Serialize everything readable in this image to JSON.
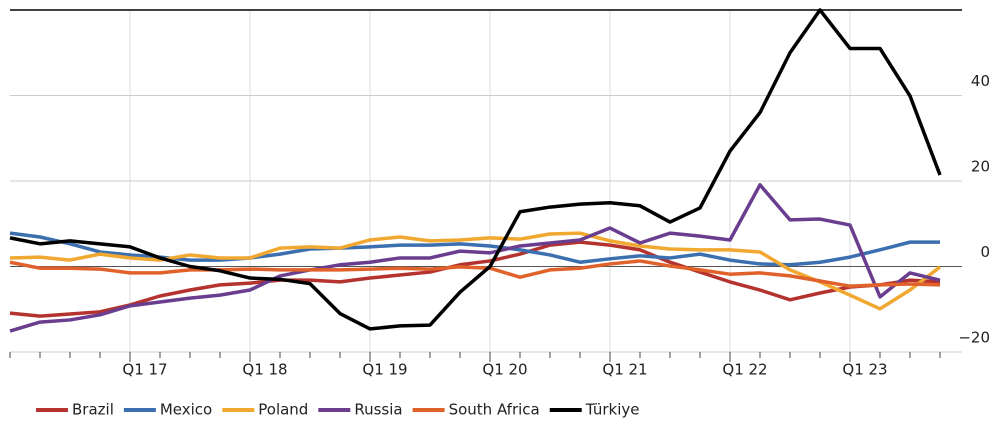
{
  "chart_data": {
    "type": "line",
    "categories": [
      null,
      null,
      null,
      null,
      "Q1 17",
      null,
      null,
      null,
      "Q1 18",
      null,
      null,
      null,
      "Q1 19",
      null,
      null,
      null,
      "Q1 20",
      null,
      null,
      null,
      "Q1 21",
      null,
      null,
      null,
      "Q1 22",
      null,
      null,
      null,
      "Q1 23",
      null,
      null,
      null
    ],
    "series": [
      {
        "name": "Brazil",
        "color": "#b5332f",
        "values": [
          -10.9,
          -11.6,
          -11.1,
          -10.6,
          -9,
          -6.9,
          -5.5,
          -4.3,
          -3.9,
          -3.2,
          -3.2,
          -3.6,
          -2.7,
          -2,
          -1.3,
          0.4,
          1.3,
          2.9,
          5,
          5.7,
          5,
          3.9,
          1,
          -1.3,
          -3.6,
          -5.5,
          -7.8,
          -6.2,
          -4.8,
          -4.3,
          -3.2,
          -3.6
        ]
      },
      {
        "name": "Mexico",
        "color": "#3b6fb0",
        "values": [
          7.8,
          6.9,
          5.3,
          3.4,
          2.7,
          2.2,
          1.5,
          1.5,
          2,
          2.9,
          4.1,
          4.3,
          4.6,
          5,
          5,
          5.3,
          4.8,
          3.9,
          2.7,
          1,
          1.8,
          2.5,
          2,
          2.9,
          1.5,
          0.6,
          0.4,
          1,
          2.2,
          3.9,
          5.7,
          5.7
        ]
      },
      {
        "name": "Poland",
        "color": "#f0a830",
        "values": [
          2,
          2.2,
          1.5,
          2.9,
          2,
          1.5,
          2.7,
          2,
          2,
          4.3,
          4.6,
          4.3,
          6.2,
          6.9,
          6,
          6.2,
          6.7,
          6.4,
          7.6,
          7.8,
          6,
          4.8,
          4.1,
          3.9,
          3.9,
          3.4,
          -0.8,
          -3.6,
          -6.7,
          -9.9,
          -5.5,
          -0.1
        ]
      },
      {
        "name": "Russia",
        "color": "#6a3d8f",
        "values": [
          -15.1,
          -13,
          -12.5,
          -11.3,
          -9.2,
          -8.3,
          -7.4,
          -6.7,
          -5.5,
          -2.2,
          -0.8,
          0.4,
          1,
          2,
          2,
          3.6,
          3.2,
          4.8,
          5.5,
          6.2,
          9,
          5.5,
          7.8,
          7.1,
          6.2,
          19.1,
          10.9,
          11.1,
          9.7,
          -7.1,
          -1.5,
          -3.2
        ]
      },
      {
        "name": "South Africa",
        "color": "#e0622a",
        "values": [
          1,
          -0.4,
          -0.4,
          -0.6,
          -1.5,
          -1.5,
          -0.8,
          -0.8,
          -0.6,
          -0.8,
          -0.8,
          -0.8,
          -0.6,
          -0.4,
          -0.6,
          -0.1,
          -0.4,
          -2.5,
          -0.8,
          -0.4,
          0.6,
          1.3,
          0.1,
          -0.8,
          -1.8,
          -1.5,
          -2.2,
          -3.4,
          -4.6,
          -4.3,
          -4.1,
          -4.3
        ]
      },
      {
        "name": "Türkiye",
        "color": "#000000",
        "values": [
          6.7,
          5.3,
          6,
          5.3,
          4.6,
          2,
          0,
          -1,
          -2.7,
          -3,
          -4,
          -11,
          -14.6,
          -13.9,
          -13.7,
          -6,
          0,
          12.8,
          13.9,
          14.6,
          14.9,
          14.2,
          10.4,
          13.7,
          27,
          36,
          50,
          60,
          51,
          51,
          39.9,
          21.4
        ]
      }
    ],
    "ylim": [
      -20,
      60
    ],
    "yticks": [
      {
        "value": -20,
        "label": "−20"
      },
      0,
      20,
      40
    ],
    "grid": true
  }
}
